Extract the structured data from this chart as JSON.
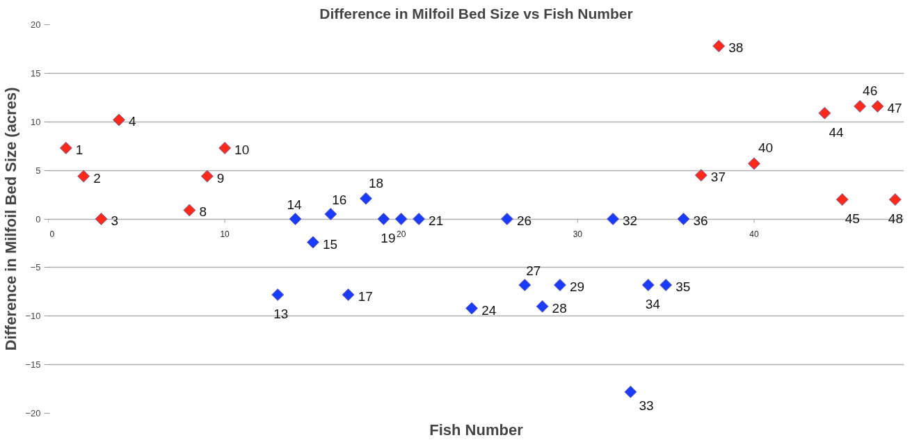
{
  "chart_data": {
    "type": "scatter",
    "title": "Difference in Milfoil Bed Size vs Fish Number",
    "xlabel": "Fish Number",
    "ylabel": "Difference in Milfoil Bed Size (acres)",
    "series": [
      {
        "color": "#ff2a1a",
        "x": [
          1,
          2,
          3,
          4,
          8,
          9,
          10,
          37,
          38,
          40,
          44,
          45,
          46,
          47,
          48
        ],
        "values": [
          7.3,
          4.4,
          0,
          10.2,
          0.9,
          4.4,
          7.3,
          4.5,
          17.8,
          5.7,
          10.9,
          2.0,
          11.6,
          11.6,
          2.0
        ]
      },
      {
        "color": "#1a3cff",
        "x": [
          13,
          14,
          15,
          16,
          17,
          18,
          19,
          20,
          21,
          24,
          26,
          27,
          28,
          29,
          32,
          33,
          34,
          35,
          36
        ],
        "values": [
          -7.8,
          0,
          -2.4,
          0.5,
          -7.8,
          2.1,
          0,
          0,
          0,
          -9.2,
          0,
          -6.8,
          -9.0,
          -6.8,
          0,
          -17.8,
          -6.8,
          -6.8,
          0
        ]
      }
    ],
    "annotations": [
      {
        "text": "1",
        "x": 1,
        "y": 7.3
      },
      {
        "text": "2",
        "x": 2,
        "y": 4.4
      },
      {
        "text": "3",
        "x": 3,
        "y": 0
      },
      {
        "text": "4",
        "x": 4,
        "y": 10.2
      },
      {
        "text": "8",
        "x": 8,
        "y": 0.9
      },
      {
        "text": "9",
        "x": 9,
        "y": 4.4
      },
      {
        "text": "10",
        "x": 10,
        "y": 7.3
      },
      {
        "text": "13",
        "x": 13,
        "y": -7.8
      },
      {
        "text": "14",
        "x": 14,
        "y": 0
      },
      {
        "text": "15",
        "x": 15,
        "y": -2.4
      },
      {
        "text": "16",
        "x": 16,
        "y": 0.5
      },
      {
        "text": "17",
        "x": 17,
        "y": -7.8
      },
      {
        "text": "18",
        "x": 18,
        "y": 2.1
      },
      {
        "text": "19",
        "x": 19,
        "y": 0
      },
      {
        "text": "21",
        "x": 21,
        "y": 0
      },
      {
        "text": "24",
        "x": 24,
        "y": -9.2
      },
      {
        "text": "26",
        "x": 26,
        "y": 0
      },
      {
        "text": "27",
        "x": 27,
        "y": -6.8
      },
      {
        "text": "28",
        "x": 28,
        "y": -9.0
      },
      {
        "text": "29",
        "x": 29,
        "y": -6.8
      },
      {
        "text": "32",
        "x": 32,
        "y": 0
      },
      {
        "text": "33",
        "x": 33,
        "y": -17.8
      },
      {
        "text": "34",
        "x": 34,
        "y": -6.8
      },
      {
        "text": "35",
        "x": 35,
        "y": -6.8
      },
      {
        "text": "36",
        "x": 36,
        "y": 0
      },
      {
        "text": "37",
        "x": 37,
        "y": 4.5
      },
      {
        "text": "38",
        "x": 38,
        "y": 17.8
      },
      {
        "text": "40",
        "x": 40,
        "y": 5.7
      },
      {
        "text": "44",
        "x": 44,
        "y": 10.9
      },
      {
        "text": "45",
        "x": 45,
        "y": 2.0
      },
      {
        "text": "46",
        "x": 46,
        "y": 11.6
      },
      {
        "text": "47",
        "x": 47,
        "y": 11.6
      },
      {
        "text": "48",
        "x": 48,
        "y": 2.0
      }
    ],
    "xlim": [
      0,
      48.5
    ],
    "xticks": [
      0,
      10,
      20,
      30,
      40
    ],
    "ylim": [
      -20,
      20
    ],
    "yticks": [
      -20,
      -15,
      -10,
      -5,
      0,
      5,
      10,
      15,
      20
    ],
    "grid": "y",
    "marker": "diamond"
  }
}
